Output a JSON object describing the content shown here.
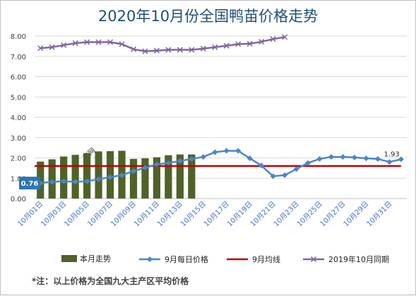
{
  "title": "2020年10月份全国鸭苗价格走势",
  "note": "*注：以上价格为全国九大主产区平均价格",
  "watermark": "禽网",
  "colors": {
    "bars": "#4f6228",
    "daily": "#4a86c5",
    "avg": "#c00000",
    "lastyear": "#8064a2",
    "callout_bg": "#2e75b6"
  },
  "chart_data": {
    "type": "bar",
    "ylim": [
      0,
      8
    ],
    "yticks": [
      "0.00",
      "1.00",
      "2.00",
      "3.00",
      "4.00",
      "5.00",
      "6.00",
      "7.00",
      "8.00"
    ],
    "xlabels": [
      "10月01日",
      "10月03日",
      "10月05日",
      "10月07日",
      "10月09日",
      "10月11日",
      "10月13日",
      "10月15日",
      "10月17日",
      "10月19日",
      "10月21日",
      "10月23日",
      "10月25日",
      "10月27日",
      "10月29日",
      "10月31日"
    ],
    "series": [
      {
        "name": "本月走势",
        "type": "bar",
        "values": [
          1.82,
          1.93,
          2.07,
          2.15,
          2.23,
          2.32,
          2.33,
          2.35,
          1.95,
          1.98,
          2.03,
          2.13,
          2.17,
          2.17
        ]
      },
      {
        "name": "9月每日价格",
        "type": "line",
        "values": [
          0.76,
          0.82,
          0.85,
          0.82,
          0.85,
          0.95,
          1.05,
          1.15,
          1.35,
          1.52,
          1.68,
          1.75,
          1.85,
          1.95,
          2.05,
          2.28,
          2.35,
          2.35,
          1.98,
          1.62,
          1.1,
          1.15,
          1.45,
          1.75,
          1.95,
          2.05,
          2.05,
          2.02,
          1.98,
          1.95,
          1.8,
          1.93
        ]
      },
      {
        "name": "9月均线",
        "type": "line",
        "values": [
          1.6,
          1.6
        ]
      },
      {
        "name": "2019年10月同期",
        "type": "line",
        "values": [
          7.4,
          7.45,
          7.55,
          7.65,
          7.7,
          7.7,
          7.7,
          7.6,
          7.35,
          7.25,
          7.28,
          7.32,
          7.32,
          7.32,
          7.38,
          7.45,
          7.52,
          7.6,
          7.62,
          7.72,
          7.85,
          7.95
        ]
      }
    ],
    "data_labels": [
      {
        "series": "9月每日价格",
        "text": "0.76",
        "position": "start"
      },
      {
        "series": "9月每日价格",
        "text": "1.93",
        "position": "end"
      }
    ]
  }
}
